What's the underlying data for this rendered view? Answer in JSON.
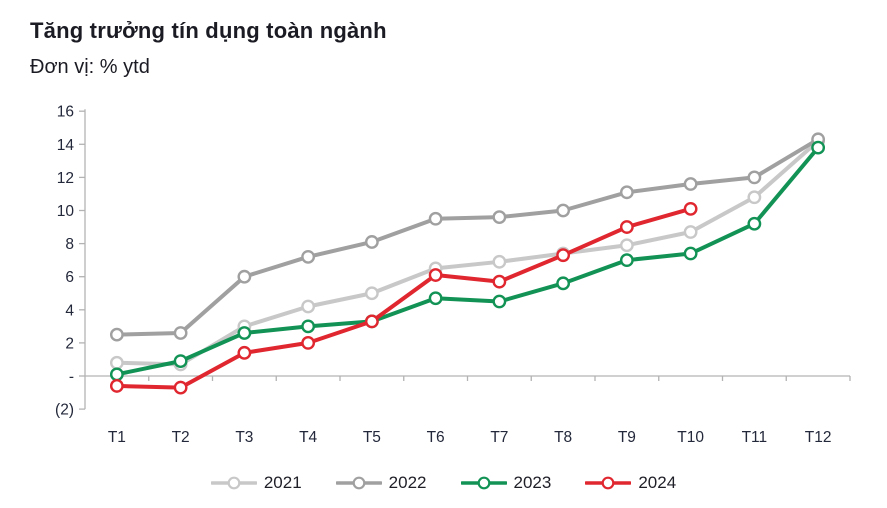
{
  "chart_data": {
    "type": "line",
    "title": "Tăng trưởng tín dụng toàn ngành",
    "subtitle": "Đơn vị: % ytd",
    "categories": [
      "T1",
      "T2",
      "T3",
      "T4",
      "T5",
      "T6",
      "T7",
      "T8",
      "T9",
      "T10",
      "T11",
      "T12"
    ],
    "series": [
      {
        "name": "2021",
        "color": "#c8c8c8",
        "values": [
          0.8,
          0.7,
          3.0,
          4.2,
          5.0,
          6.5,
          6.9,
          7.4,
          7.9,
          8.7,
          10.8,
          14.2
        ]
      },
      {
        "name": "2022",
        "color": "#a0a0a0",
        "values": [
          2.5,
          2.6,
          6.0,
          7.2,
          8.1,
          9.5,
          9.6,
          10.0,
          11.1,
          11.6,
          12.0,
          14.3
        ]
      },
      {
        "name": "2023",
        "color": "#129355",
        "values": [
          0.1,
          0.9,
          2.6,
          3.0,
          3.3,
          4.7,
          4.5,
          5.6,
          7.0,
          7.4,
          9.2,
          13.8
        ]
      },
      {
        "name": "2024",
        "color": "#e02730",
        "values": [
          -0.6,
          -0.7,
          1.4,
          2.0,
          3.3,
          6.1,
          5.7,
          7.3,
          9.0,
          10.1,
          null,
          null
        ]
      }
    ],
    "y_axis": {
      "min": -2,
      "max": 16,
      "step": 2,
      "tick_labels": [
        "16",
        "14",
        "12",
        "10",
        "8",
        "6",
        "4",
        "2",
        "-",
        "(2)"
      ]
    },
    "x_axis": {
      "tick_labels": [
        "T1",
        "T2",
        "T3",
        "T4",
        "T5",
        "T6",
        "T7",
        "T8",
        "T9",
        "T10",
        "T11",
        "T12"
      ]
    },
    "legend": {
      "position": "bottom",
      "entries": [
        "2021",
        "2022",
        "2023",
        "2024"
      ]
    },
    "grid": "zero baseline only",
    "colors": {
      "axis": "#b3b3b3",
      "tick_text": "#23283a",
      "title_text": "#1b1b24"
    }
  }
}
